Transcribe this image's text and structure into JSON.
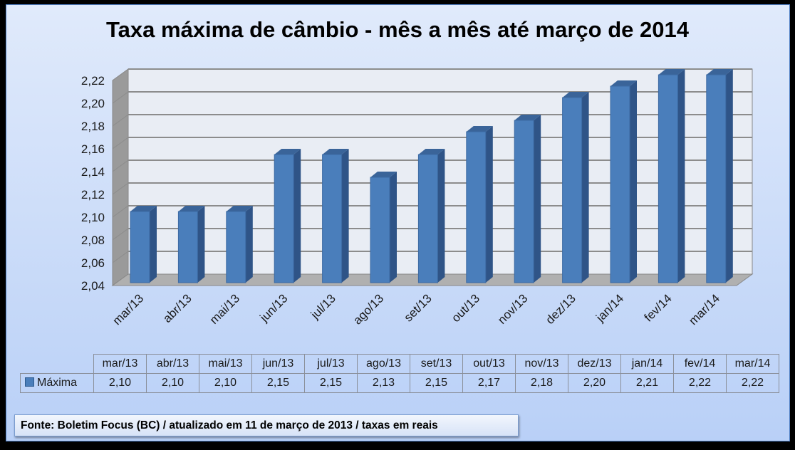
{
  "chart_data": {
    "type": "bar",
    "title": "Taxa máxima de câmbio - mês a mês até março de 2014",
    "categories": [
      "mar/13",
      "abr/13",
      "mai/13",
      "jun/13",
      "jul/13",
      "ago/13",
      "set/13",
      "out/13",
      "nov/13",
      "dez/13",
      "jan/14",
      "fev/14",
      "mar/14"
    ],
    "series": [
      {
        "name": "Máxima",
        "values": [
          2.1,
          2.1,
          2.1,
          2.15,
          2.15,
          2.13,
          2.15,
          2.17,
          2.18,
          2.2,
          2.21,
          2.22,
          2.22
        ]
      }
    ],
    "value_labels": [
      "2,10",
      "2,10",
      "2,10",
      "2,15",
      "2,15",
      "2,13",
      "2,15",
      "2,17",
      "2,18",
      "2,20",
      "2,21",
      "2,22",
      "2,22"
    ],
    "ylim": [
      2.04,
      2.22
    ],
    "yticks": [
      "2,04",
      "2,06",
      "2,08",
      "2,10",
      "2,12",
      "2,14",
      "2,16",
      "2,18",
      "2,20",
      "2,22"
    ],
    "grid": true,
    "style": "3d-column",
    "legend": "data-table",
    "bar_color": "#4a7ebb",
    "xlabel": "",
    "ylabel": ""
  },
  "footer": "Fonte: Boletim Focus (BC) / atualizado  em 11 de março de 2013 / taxas em reais"
}
